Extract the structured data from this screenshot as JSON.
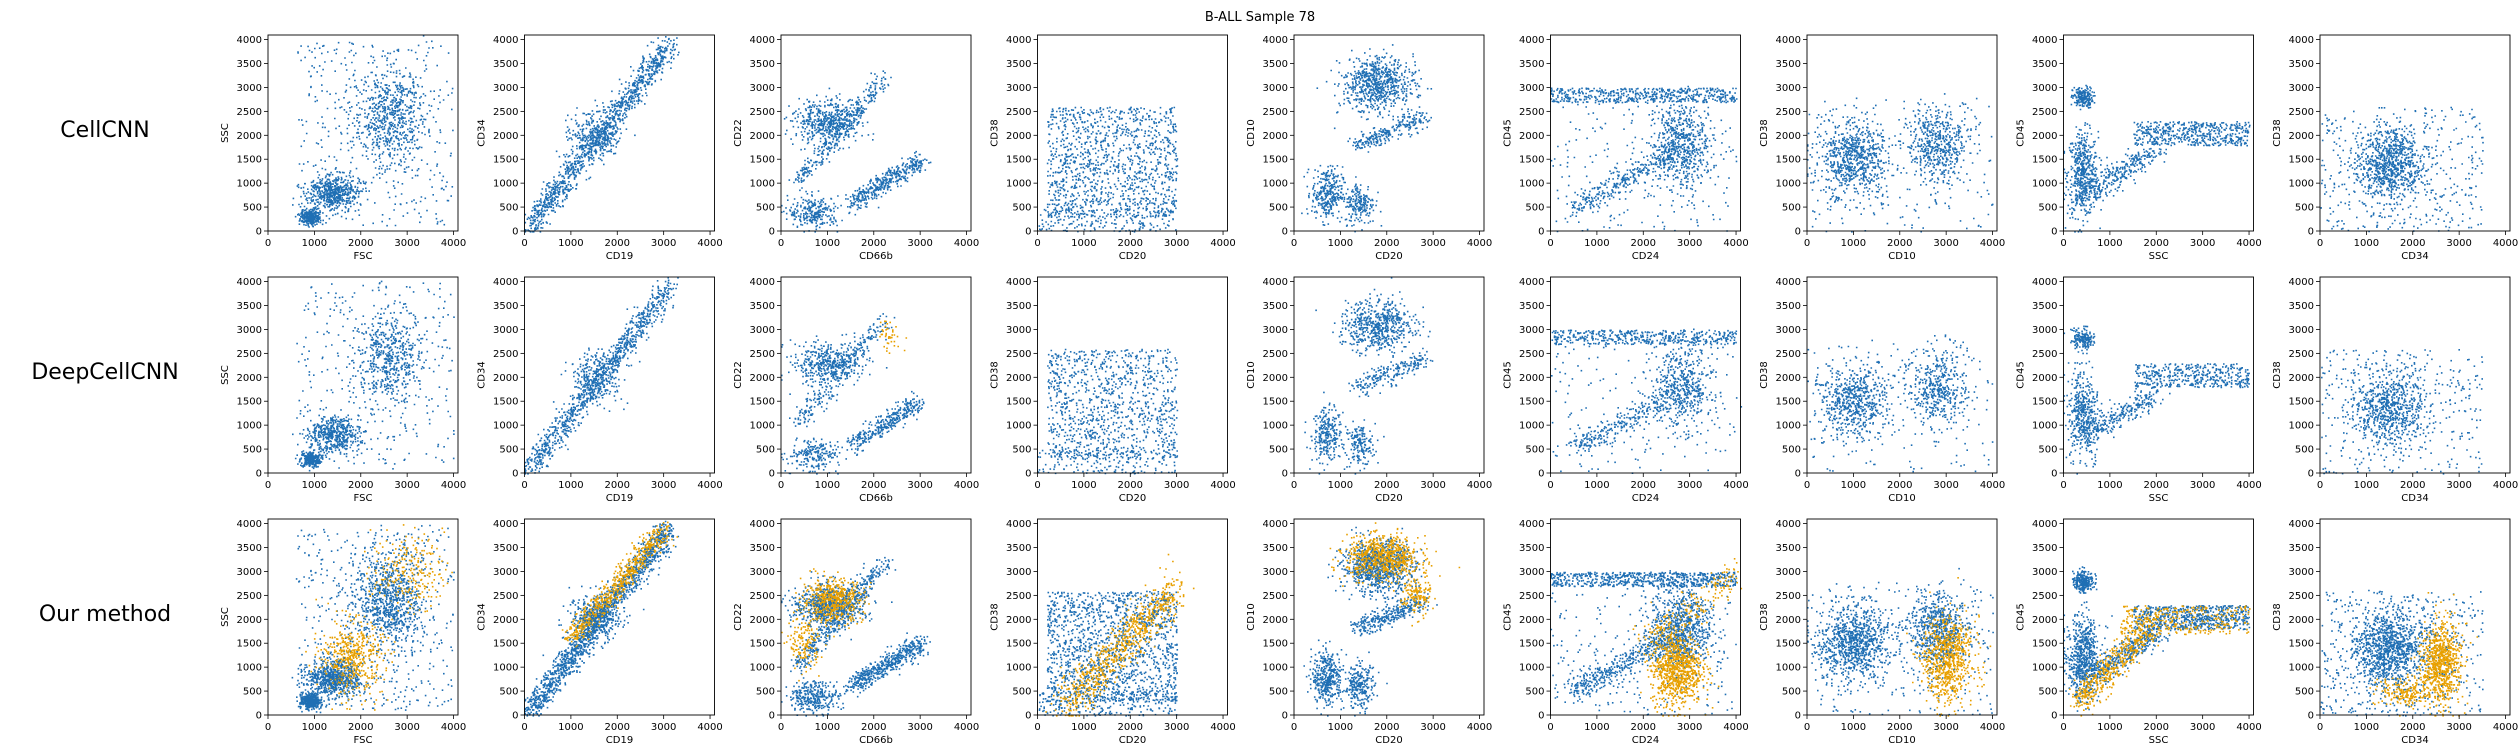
{
  "figure": {
    "title": "B-ALL Sample 78"
  },
  "rows": [
    "CellCNN",
    "DeepCellCNN",
    "Our method"
  ],
  "colors": {
    "series_a": "#1f6fb4",
    "series_b": "#e8a000"
  },
  "chart_data": {
    "type": "scatter",
    "title": "B-ALL Sample 78",
    "xlim": [
      0,
      4096
    ],
    "ylim": [
      0,
      4096
    ],
    "xticks": [
      0,
      1000,
      2000,
      3000,
      4000
    ],
    "yticks": [
      0,
      500,
      1000,
      1500,
      2000,
      2500,
      3000,
      3500,
      4000
    ],
    "grid": false,
    "panels": [
      {
        "x_label": "FSC",
        "y_label": "SSC"
      },
      {
        "x_label": "CD19",
        "y_label": "CD34"
      },
      {
        "x_label": "CD66b",
        "y_label": "CD22"
      },
      {
        "x_label": "CD20",
        "y_label": "CD38"
      },
      {
        "x_label": "CD20",
        "y_label": "CD10"
      },
      {
        "x_label": "CD24",
        "y_label": "CD45"
      },
      {
        "x_label": "CD10",
        "y_label": "CD38"
      },
      {
        "x_label": "SSC",
        "y_label": "CD45"
      },
      {
        "x_label": "CD34",
        "y_label": "CD38"
      }
    ],
    "clusters": [
      {
        "blue": [
          {
            "shape": "ellipse",
            "cx": 1400,
            "cy": 800,
            "sx": 500,
            "sy": 350,
            "n": 550
          },
          {
            "shape": "ellipse",
            "cx": 2600,
            "cy": 2400,
            "sx": 700,
            "sy": 900,
            "n": 650
          },
          {
            "shape": "ellipse",
            "cx": 900,
            "cy": 300,
            "sx": 200,
            "sy": 150,
            "n": 300
          },
          {
            "shape": "uniform",
            "x": [
              600,
              4000
            ],
            "y": [
              100,
              4000
            ],
            "n": 350
          }
        ],
        "orange": [
          {
            "shape": "ellipse",
            "cx": 1800,
            "cy": 1200,
            "sx": 600,
            "sy": 700,
            "n": 500
          },
          {
            "shape": "ellipse",
            "cx": 3000,
            "cy": 3000,
            "sx": 700,
            "sy": 700,
            "n": 250
          }
        ]
      },
      {
        "blue": [
          {
            "shape": "line",
            "x0": 100,
            "y0": 100,
            "x1": 3100,
            "y1": 3900,
            "w": 250,
            "n": 1100
          },
          {
            "shape": "ellipse",
            "cx": 1500,
            "cy": 2000,
            "sx": 500,
            "sy": 500,
            "n": 300
          }
        ],
        "orange": [
          {
            "shape": "line",
            "x0": 1000,
            "y0": 1600,
            "x1": 3000,
            "y1": 3900,
            "w": 220,
            "n": 700
          }
        ]
      },
      {
        "blue": [
          {
            "shape": "ellipse",
            "cx": 1000,
            "cy": 2300,
            "sx": 700,
            "sy": 400,
            "n": 500
          },
          {
            "shape": "line",
            "x0": 1500,
            "y0": 600,
            "x1": 3000,
            "y1": 1500,
            "w": 200,
            "n": 400
          },
          {
            "shape": "line",
            "x0": 300,
            "y0": 1000,
            "x1": 2200,
            "y1": 3200,
            "w": 200,
            "n": 300
          },
          {
            "shape": "ellipse",
            "cx": 700,
            "cy": 400,
            "sx": 500,
            "sy": 300,
            "n": 250
          }
        ],
        "orange": [
          {
            "shape": "ellipse",
            "cx": 1100,
            "cy": 2400,
            "sx": 600,
            "sy": 400,
            "n": 600
          },
          {
            "shape": "ellipse",
            "cx": 500,
            "cy": 1500,
            "sx": 300,
            "sy": 500,
            "n": 150
          }
        ]
      },
      {
        "blue": [
          {
            "shape": "rect",
            "x": [
              200,
              3000
            ],
            "y": [
              300,
              2600
            ],
            "n": 1200
          },
          {
            "shape": "uniform",
            "x": [
              0,
              3000
            ],
            "y": [
              0,
              500
            ],
            "n": 200
          }
        ],
        "orange": [
          {
            "shape": "line",
            "x0": 600,
            "y0": 200,
            "x1": 3000,
            "y1": 2700,
            "w": 400,
            "n": 800
          }
        ]
      },
      {
        "blue": [
          {
            "shape": "ellipse",
            "cx": 1800,
            "cy": 3100,
            "sx": 700,
            "sy": 500,
            "n": 700
          },
          {
            "shape": "ellipse",
            "cx": 700,
            "cy": 800,
            "sx": 300,
            "sy": 500,
            "n": 300
          },
          {
            "shape": "ellipse",
            "cx": 1400,
            "cy": 600,
            "sx": 300,
            "sy": 400,
            "n": 200
          },
          {
            "shape": "line",
            "x0": 1300,
            "y0": 1800,
            "x1": 2800,
            "y1": 2400,
            "w": 200,
            "n": 250
          }
        ],
        "orange": [
          {
            "shape": "ellipse",
            "cx": 1900,
            "cy": 3300,
            "sx": 700,
            "sy": 400,
            "n": 800
          },
          {
            "shape": "ellipse",
            "cx": 2600,
            "cy": 2500,
            "sx": 300,
            "sy": 400,
            "n": 150
          }
        ]
      },
      {
        "blue": [
          {
            "shape": "rect",
            "x": [
              0,
              4000
            ],
            "y": [
              2700,
              3000
            ],
            "n": 500
          },
          {
            "shape": "line",
            "x0": 500,
            "y0": 500,
            "x1": 2500,
            "y1": 1600,
            "w": 250,
            "n": 300
          },
          {
            "shape": "ellipse",
            "cx": 2800,
            "cy": 1800,
            "sx": 600,
            "sy": 800,
            "n": 600
          },
          {
            "shape": "uniform",
            "x": [
              0,
              4000
            ],
            "y": [
              0,
              3000
            ],
            "n": 200
          }
        ],
        "orange": [
          {
            "shape": "ellipse",
            "cx": 2700,
            "cy": 1000,
            "sx": 500,
            "sy": 700,
            "n": 900
          },
          {
            "shape": "line",
            "x0": 2000,
            "y0": 1500,
            "x1": 4000,
            "y1": 3000,
            "w": 300,
            "n": 200
          }
        ]
      },
      {
        "blue": [
          {
            "shape": "ellipse",
            "cx": 1000,
            "cy": 1500,
            "sx": 700,
            "sy": 700,
            "n": 700
          },
          {
            "shape": "ellipse",
            "cx": 2800,
            "cy": 1800,
            "sx": 600,
            "sy": 700,
            "n": 500
          },
          {
            "shape": "uniform",
            "x": [
              0,
              4000
            ],
            "y": [
              0,
              2800
            ],
            "n": 200
          }
        ],
        "orange": [
          {
            "shape": "ellipse",
            "cx": 3000,
            "cy": 1200,
            "sx": 500,
            "sy": 800,
            "n": 800
          }
        ]
      },
      {
        "blue": [
          {
            "shape": "rect",
            "x": [
              1500,
              4000
            ],
            "y": [
              1800,
              2300
            ],
            "n": 500
          },
          {
            "shape": "ellipse",
            "cx": 400,
            "cy": 1200,
            "sx": 300,
            "sy": 800,
            "n": 500
          },
          {
            "shape": "ellipse",
            "cx": 400,
            "cy": 2800,
            "sx": 200,
            "sy": 200,
            "n": 200
          },
          {
            "shape": "line",
            "x0": 500,
            "y0": 800,
            "x1": 2000,
            "y1": 1700,
            "w": 250,
            "n": 300
          }
        ],
        "orange": [
          {
            "shape": "line",
            "x0": 300,
            "y0": 300,
            "x1": 1800,
            "y1": 1800,
            "w": 300,
            "n": 500
          },
          {
            "shape": "rect",
            "x": [
              1200,
              4000
            ],
            "y": [
              1700,
              2300
            ],
            "n": 350
          }
        ]
      },
      {
        "blue": [
          {
            "shape": "ellipse",
            "cx": 1500,
            "cy": 1400,
            "sx": 700,
            "sy": 700,
            "n": 800
          },
          {
            "shape": "rect",
            "x": [
              0,
              3500
            ],
            "y": [
              0,
              2600
            ],
            "n": 400
          }
        ],
        "orange": [
          {
            "shape": "ellipse",
            "cx": 2600,
            "cy": 1100,
            "sx": 400,
            "sy": 800,
            "n": 800
          },
          {
            "shape": "ellipse",
            "cx": 1800,
            "cy": 500,
            "sx": 500,
            "sy": 300,
            "n": 200
          }
        ]
      }
    ]
  }
}
